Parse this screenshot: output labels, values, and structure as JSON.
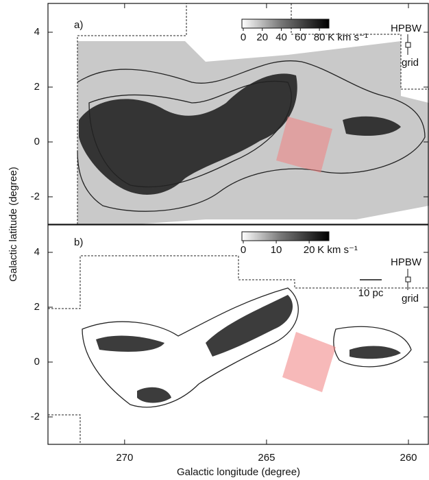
{
  "chart_data": [
    {
      "type": "contour",
      "panel_label": "a)",
      "ylabel": "Galactic latitude (degree)",
      "xlim": [
        272.7,
        259.3
      ],
      "ylim": [
        -3,
        5.05
      ],
      "yticks": [
        -2,
        0,
        2,
        4
      ],
      "colorbar": {
        "lim": [
          0,
          90
        ],
        "ticks": [
          0,
          20,
          40,
          60,
          80
        ],
        "label": "K km s⁻¹"
      },
      "beam_label": "HPBW",
      "grid_label": "grid"
    },
    {
      "type": "contour",
      "panel_label": "b)",
      "xlabel": "Galactic longitude (degree)",
      "xlim": [
        272.7,
        259.3
      ],
      "ylim": [
        -3,
        5
      ],
      "xticks": [
        270,
        265,
        260
      ],
      "yticks": [
        -2,
        0,
        2,
        4
      ],
      "colorbar": {
        "lim": [
          0,
          26
        ],
        "ticks": [
          0,
          10,
          20
        ],
        "label": "K km s⁻¹"
      },
      "beam_label": "HPBW",
      "grid_label": "grid",
      "scale_label": "10 pc"
    }
  ]
}
